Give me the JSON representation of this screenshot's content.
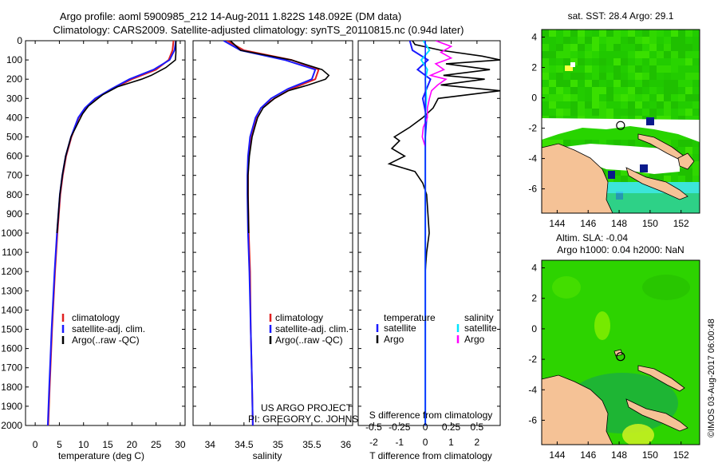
{
  "title": {
    "line1": "Argo profile: aoml 5900985_212 14-Aug-2011 1.822S 148.092E (DM data)",
    "line2": "Climatology: CARS2009. Satellite-adjusted climatology: synTS_20110815.nc (0.94d later)"
  },
  "colors": {
    "climatology": "#e02020",
    "satellite": "#1a1aff",
    "argo": "#000000",
    "salinity_satellite": "#00e5ff",
    "salinity_argo": "#ff00ff",
    "land": "#f5c296"
  },
  "chart_data": [
    {
      "id": "temperature",
      "type": "line",
      "xlabel": "temperature (deg C)",
      "ylabel": "",
      "xlim": [
        -2,
        31
      ],
      "ylim": [
        2000,
        0
      ],
      "xticks": [
        "0",
        "5",
        "10",
        "15",
        "20",
        "25",
        "30"
      ],
      "yticks": [
        "0",
        "100",
        "200",
        "300",
        "400",
        "500",
        "600",
        "700",
        "800",
        "900",
        "1000",
        "1100",
        "1200",
        "1300",
        "1400",
        "1500",
        "1600",
        "1700",
        "1800",
        "1900",
        "2000"
      ],
      "legend": [
        "climatology",
        "satellite-adj. clim.",
        "Argo(..raw -QC)"
      ],
      "series": [
        {
          "name": "climatology",
          "depth": [
            0,
            50,
            100,
            150,
            200,
            250,
            300,
            350,
            400,
            500,
            600,
            700,
            800,
            1000,
            1200,
            1500,
            1800,
            2000
          ],
          "values": [
            28.6,
            28.4,
            27.6,
            25,
            20,
            16,
            12.5,
            10.4,
            9,
            7.5,
            6.4,
            5.7,
            5.2,
            4.6,
            4.1,
            3.5,
            3,
            2.7
          ]
        },
        {
          "name": "satellite-adj. clim.",
          "depth": [
            0,
            50,
            100,
            150,
            200,
            250,
            300,
            350,
            400,
            500,
            600,
            700,
            800,
            1000,
            1200,
            1500,
            1800,
            2000
          ],
          "values": [
            29.1,
            28.8,
            27.8,
            24.5,
            19.5,
            15.8,
            12.4,
            10.3,
            8.9,
            7.4,
            6.3,
            5.6,
            5.1,
            4.5,
            4,
            3.4,
            2.9,
            2.6
          ]
        },
        {
          "name": "Argo(..raw -QC)",
          "depth": [
            0,
            60,
            100,
            140,
            180,
            200,
            220,
            240,
            260,
            280,
            300,
            340,
            380,
            420,
            500,
            600,
            700,
            800,
            1000
          ],
          "values": [
            29.1,
            29.1,
            29.0,
            27.0,
            24.0,
            22.0,
            19.5,
            17.0,
            15.5,
            14.0,
            13.0,
            11.0,
            9.8,
            9.0,
            7.4,
            6.3,
            5.6,
            5.1,
            4.5
          ]
        }
      ]
    },
    {
      "id": "salinity",
      "type": "line",
      "xlabel": "salinity",
      "xlim": [
        33.75,
        36.1
      ],
      "ylim": [
        2000,
        0
      ],
      "xticks": [
        "34",
        "34.5",
        "35",
        "35.5",
        "36"
      ],
      "legend": [
        "climatology",
        "satellite-adj. clim.",
        "Argo(..raw -QC)"
      ],
      "series": [
        {
          "name": "climatology",
          "depth": [
            0,
            50,
            100,
            150,
            200,
            250,
            300,
            350,
            400,
            500,
            600,
            700,
            800,
            1000,
            1200,
            1500,
            1800,
            2000
          ],
          "values": [
            34.25,
            34.5,
            35.2,
            35.6,
            35.55,
            35.2,
            34.95,
            34.75,
            34.68,
            34.6,
            34.57,
            34.56,
            34.56,
            34.57,
            34.59,
            34.6,
            34.62,
            34.63
          ]
        },
        {
          "name": "satellite-adj. clim.",
          "depth": [
            0,
            50,
            100,
            150,
            200,
            250,
            300,
            350,
            400,
            500,
            600,
            700,
            800,
            1000,
            1200,
            1500,
            1800,
            2000
          ],
          "values": [
            34.2,
            34.45,
            35.1,
            35.55,
            35.5,
            35.15,
            34.9,
            34.75,
            34.67,
            34.59,
            34.56,
            34.55,
            34.55,
            34.56,
            34.58,
            34.6,
            34.62,
            34.63
          ]
        },
        {
          "name": "Argo(..raw -QC)",
          "depth": [
            0,
            50,
            100,
            150,
            180,
            200,
            230,
            260,
            300,
            350,
            400,
            450,
            500,
            600,
            700,
            800,
            1000
          ],
          "values": [
            34.3,
            34.45,
            35.2,
            35.65,
            35.75,
            35.7,
            35.45,
            35.15,
            34.95,
            34.78,
            34.7,
            34.66,
            34.62,
            34.58,
            34.56,
            34.56,
            34.57
          ]
        }
      ]
    },
    {
      "id": "difference",
      "type": "line",
      "xlabel": "T difference from climatology",
      "xlabel2": "S difference from climatology",
      "xlim": [
        -2.6,
        2.9
      ],
      "ylim": [
        2000,
        0
      ],
      "xticks": [
        "-2",
        "-1",
        "0",
        "1",
        "2"
      ],
      "xticks_s": [
        "-0.5",
        "-0.25",
        "0",
        "0.25",
        "0.5"
      ],
      "legend_header_t": "temperature",
      "legend_header_s": "salinity",
      "legend": [
        "satellite",
        "Argo",
        "satellite",
        "Argo"
      ],
      "series": [
        {
          "name": "temperature satellite",
          "depth": [
            0,
            50,
            100,
            150,
            200,
            300,
            400,
            500,
            700,
            1000,
            1500,
            2000
          ],
          "values": [
            -0.6,
            -0.5,
            0.1,
            -0.3,
            0.2,
            -0.1,
            0.05,
            0,
            0,
            0,
            0,
            0
          ]
        },
        {
          "name": "temperature Argo",
          "depth": [
            0,
            20,
            50,
            80,
            100,
            120,
            150,
            180,
            200,
            230,
            260,
            300,
            350,
            400,
            450,
            500,
            520,
            560,
            600,
            640,
            680,
            700,
            740,
            800,
            900,
            1000,
            1100,
            1200
          ],
          "values": [
            -0.5,
            -0.4,
            0.6,
            2.2,
            2.9,
            0.8,
            2.5,
            0.7,
            2.3,
            0.6,
            2.9,
            0.5,
            0.3,
            -0.1,
            -0.6,
            -1.2,
            -1.0,
            -1.3,
            -0.8,
            -1.4,
            -0.4,
            -0.3,
            -0.1,
            0.05,
            0.1,
            0.15,
            0.05,
            0
          ]
        },
        {
          "name": "salinity satellite",
          "depth": [
            0,
            50,
            100,
            150,
            200,
            300,
            400,
            500,
            700,
            1000,
            1500,
            2000
          ],
          "values": [
            -0.02,
            0.04,
            -0.04,
            0.02,
            0,
            0.01,
            0,
            0,
            0,
            0,
            0,
            0
          ]
        },
        {
          "name": "salinity Argo",
          "depth": [
            0,
            30,
            60,
            90,
            120,
            150,
            180,
            200,
            230,
            260,
            300,
            350,
            400,
            450,
            500,
            550
          ],
          "values": [
            0.1,
            0.25,
            0.15,
            0.25,
            0.1,
            0.18,
            0.05,
            0.2,
            0.12,
            0.06,
            0.04,
            0.02,
            0.02,
            -0.02,
            -0.03,
            0
          ]
        }
      ]
    }
  ],
  "maps": [
    {
      "id": "sst-map",
      "title": "sat. SST: 28.4 Argo: 29.1",
      "xticks": [
        "144",
        "146",
        "148",
        "150",
        "152"
      ],
      "yticks": [
        "4",
        "2",
        "0",
        "-2",
        "-4",
        "-6"
      ],
      "float_lon": 148.092,
      "float_lat": -1.822
    },
    {
      "id": "sla-map",
      "title_line1": "Altim. SLA: -0.04",
      "title_line2": "Argo h1000: 0.04 h2000: NaN",
      "xticks": [
        "144",
        "146",
        "148",
        "150",
        "152"
      ],
      "yticks": [
        "4",
        "2",
        "0",
        "-2",
        "-4",
        "-6"
      ],
      "float_lon": 148.092,
      "float_lat": -1.822
    }
  ],
  "annotations": {
    "project_line1": "US ARGO PROJECT",
    "project_line2": "PI: GREGORY C. JOHNSON",
    "credit": "©IMOS 03-Aug-2017 06:00:48"
  }
}
